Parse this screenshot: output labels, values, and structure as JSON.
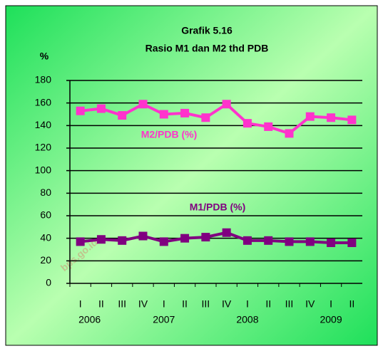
{
  "chart_data": {
    "type": "line",
    "title": [
      "Grafik 5.16",
      "Rasio M1 dan M2 thd PDB"
    ],
    "y_label": "%",
    "categories": [
      "I",
      "II",
      "III",
      "IV",
      "I",
      "II",
      "III",
      "IV",
      "I",
      "II",
      "III",
      "IV",
      "I",
      "II"
    ],
    "years": [
      "2006",
      "2007",
      "2008",
      "2009"
    ],
    "series": [
      {
        "name": "M2/PDB (%)",
        "color": "#ff33cc",
        "values": [
          153,
          155,
          149,
          159,
          150,
          151,
          147,
          159,
          142,
          139,
          133,
          148,
          147,
          145
        ]
      },
      {
        "name": "M1/PDB (%)",
        "color": "#800080",
        "values": [
          37,
          39,
          38,
          42,
          37,
          40,
          41,
          45,
          38,
          38,
          37,
          37,
          36,
          36
        ]
      }
    ],
    "ylim": [
      0,
      180
    ],
    "yticks": [
      0,
      20,
      40,
      60,
      80,
      100,
      120,
      140,
      160,
      180
    ],
    "grid": true,
    "watermark": "bps.go.id"
  }
}
